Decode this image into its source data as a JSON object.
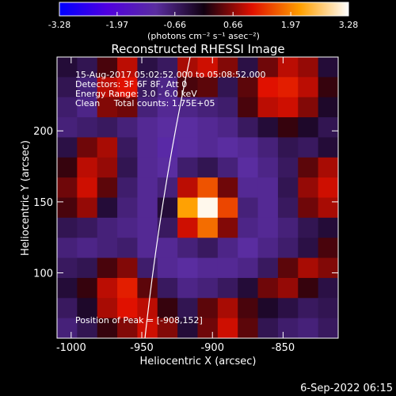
{
  "chart_data": {
    "type": "heatmap",
    "title": "Reconstructed RHESSI Image",
    "xlabel": "Heliocentric X (arcsec)",
    "ylabel": "Heliocentric Y (arcsec)",
    "xlim": [
      -1010,
      -811
    ],
    "ylim": [
      54,
      252
    ],
    "xticks": [
      -1000,
      -950,
      -900,
      -850
    ],
    "yticks": [
      100,
      150,
      200
    ],
    "zlim": [
      -3.28,
      3.28
    ],
    "zticks": [
      -3.28,
      -1.97,
      -0.66,
      0.66,
      1.97,
      3.28
    ],
    "colorbar_label": "(photons cm⁻² s⁻¹ asec⁻²)",
    "colormap": [
      "#0000ff",
      "#5000e0",
      "#5a2da0",
      "#100010",
      "#e01000",
      "#ffa000",
      "#ffffff"
    ],
    "annotations": [
      "15-Aug-2017 05:02:52.000 to 05:08:52.000",
      "Detectors: 3F 6F 8F, Att 0",
      "Energy Range: 3.0 - 6.0 keV",
      "Clean     Total counts: 1.75E+05"
    ],
    "peak_label": "Position of Peak = [-908,152]",
    "footer": "6-Sep-2022 06:15",
    "z": [
      [
        -0.3,
        -0.5,
        0.3,
        0.9,
        -0.4,
        -0.6,
        0.8,
        1.0,
        0.6,
        -0.4,
        0.5,
        0.9,
        0.7,
        -0.3
      ],
      [
        -0.5,
        -0.8,
        0.9,
        1.1,
        -0.6,
        -0.9,
        0.3,
        0.4,
        -0.5,
        0.4,
        1.1,
        1.2,
        0.9,
        0.2
      ],
      [
        -0.7,
        -0.9,
        0.6,
        0.5,
        -0.8,
        -1.0,
        -0.9,
        -0.8,
        -0.7,
        0.3,
        0.9,
        1.0,
        0.6,
        -0.2
      ],
      [
        -0.8,
        -0.7,
        -0.6,
        -0.8,
        -1.0,
        -1.1,
        -1.1,
        -1.0,
        -0.9,
        -0.6,
        -0.3,
        0.2,
        -0.2,
        -0.5
      ],
      [
        -0.4,
        0.5,
        0.8,
        -0.6,
        -1.0,
        -1.2,
        -1.1,
        -1.0,
        -1.1,
        -1.0,
        -0.8,
        -0.5,
        -0.6,
        -0.3
      ],
      [
        0.2,
        0.9,
        0.7,
        -0.5,
        -1.0,
        -1.1,
        -0.7,
        -0.5,
        -0.8,
        -1.1,
        -0.9,
        -0.6,
        0.4,
        0.8
      ],
      [
        0.5,
        1.0,
        0.4,
        -0.7,
        -1.0,
        -0.8,
        0.9,
        1.6,
        0.5,
        -1.0,
        -1.0,
        -0.5,
        0.7,
        1.0
      ],
      [
        0.3,
        0.7,
        -0.3,
        -0.8,
        -1.0,
        -0.3,
        2.2,
        3.2,
        1.5,
        -0.8,
        -1.0,
        -0.6,
        0.5,
        0.8
      ],
      [
        -0.5,
        -0.6,
        -0.8,
        -0.9,
        -1.0,
        -0.6,
        1.0,
        1.8,
        0.6,
        -0.9,
        -1.0,
        -0.8,
        -0.5,
        -0.3
      ],
      [
        -0.8,
        -0.9,
        -0.8,
        -0.7,
        -1.0,
        -1.0,
        -0.8,
        -0.6,
        -0.9,
        -1.1,
        -0.9,
        -0.7,
        -0.4,
        0.3
      ],
      [
        -0.6,
        -0.5,
        0.3,
        0.6,
        -0.7,
        -1.0,
        -1.1,
        -1.0,
        -1.0,
        -0.9,
        -0.6,
        0.4,
        0.8,
        0.6
      ],
      [
        -0.3,
        0.2,
        0.9,
        1.2,
        0.4,
        -0.6,
        -0.9,
        -0.8,
        -0.6,
        -0.3,
        0.5,
        0.7,
        0.2,
        -0.4
      ],
      [
        -0.6,
        -0.2,
        0.8,
        1.1,
        0.9,
        0.2,
        -0.5,
        0.4,
        0.8,
        0.3,
        -0.2,
        -0.4,
        -0.6,
        -0.5
      ],
      [
        -0.8,
        -0.5,
        0.2,
        0.6,
        1.0,
        0.6,
        -0.3,
        0.5,
        1.0,
        0.4,
        -0.5,
        -0.7,
        -0.8,
        -0.6
      ]
    ]
  }
}
